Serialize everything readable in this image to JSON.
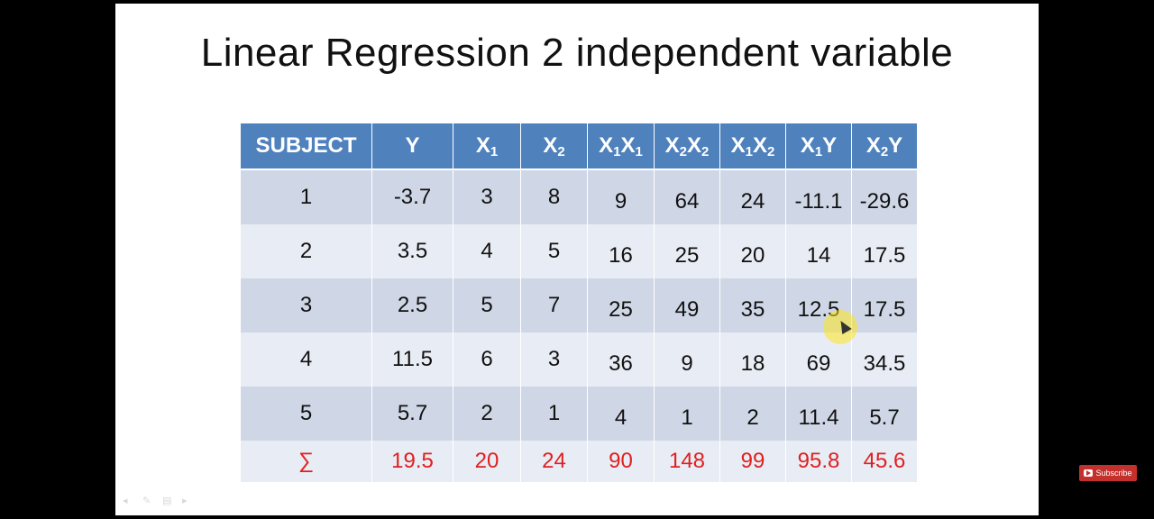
{
  "slide": {
    "title": "Linear Regression 2 independent variable"
  },
  "table": {
    "headers": [
      {
        "main": "SUBJECT"
      },
      {
        "main": "Y"
      },
      {
        "main": "X",
        "sub": "1"
      },
      {
        "main": "X",
        "sub": "2"
      },
      {
        "parts": [
          "X",
          "1",
          "X",
          "1"
        ]
      },
      {
        "parts": [
          "X",
          "2",
          "X",
          "2"
        ]
      },
      {
        "parts": [
          "X",
          "1",
          "X",
          "2"
        ]
      },
      {
        "parts": [
          "X",
          "1",
          "Y",
          ""
        ]
      },
      {
        "parts": [
          "X",
          "2",
          "Y",
          ""
        ]
      }
    ],
    "rows": [
      [
        "1",
        "-3.7",
        "3",
        "8",
        "9",
        "64",
        "24",
        "-11.1",
        "-29.6"
      ],
      [
        "2",
        "3.5",
        "4",
        "5",
        "16",
        "25",
        "20",
        "14",
        "17.5"
      ],
      [
        "3",
        "2.5",
        "5",
        "7",
        "25",
        "49",
        "35",
        "12.5",
        "17.5"
      ],
      [
        "4",
        "11.5",
        "6",
        "3",
        "36",
        "9",
        "18",
        "69",
        "34.5"
      ],
      [
        "5",
        "5.7",
        "2",
        "1",
        "4",
        "1",
        "2",
        "11.4",
        "5.7"
      ]
    ],
    "sum_row": [
      "∑",
      "19.5",
      "20",
      "24",
      "90",
      "148",
      "99",
      "95.8",
      "45.6"
    ]
  },
  "overlay": {
    "subscribe_label": "Subscribe"
  },
  "colors": {
    "header_bg": "#4f81bd",
    "row_odd": "#cfd7e6",
    "row_even": "#e8ecf4",
    "sum_text": "#e02020"
  },
  "icons": {
    "subscribe": "youtube-play-icon",
    "cursor": "mouse-pointer-highlight-icon"
  }
}
